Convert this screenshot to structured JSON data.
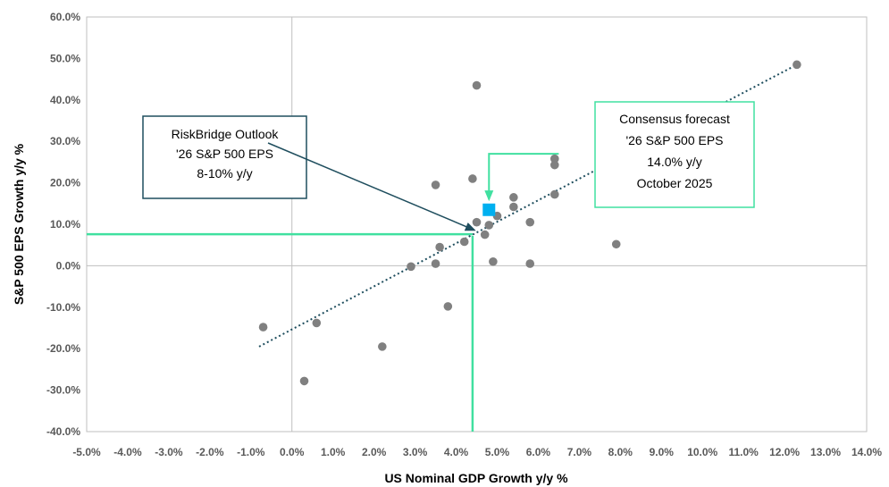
{
  "chart_data": {
    "type": "scatter",
    "xlabel": "US Nominal GDP Growth y/y %",
    "ylabel": "S&P 500 EPS Growth y/y %",
    "xlim": [
      -5,
      14
    ],
    "ylim": [
      -40,
      60
    ],
    "x_ticks": [
      "-5.0%",
      "-4.0%",
      "-3.0%",
      "-2.0%",
      "-1.0%",
      "0.0%",
      "1.0%",
      "2.0%",
      "3.0%",
      "4.0%",
      "5.0%",
      "6.0%",
      "7.0%",
      "8.0%",
      "9.0%",
      "10.0%",
      "11.0%",
      "12.0%",
      "13.0%",
      "14.0%"
    ],
    "y_ticks": [
      "-40.0%",
      "-30.0%",
      "-20.0%",
      "-10.0%",
      "0.0%",
      "10.0%",
      "20.0%",
      "30.0%",
      "40.0%",
      "50.0%",
      "60.0%"
    ],
    "grid": false,
    "series": [
      {
        "type": "scatter",
        "color": "#808080",
        "points": [
          [
            -0.7,
            -14.8
          ],
          [
            0.3,
            -27.8
          ],
          [
            0.6,
            -13.8
          ],
          [
            2.2,
            -19.5
          ],
          [
            2.9,
            -0.2
          ],
          [
            3.5,
            0.5
          ],
          [
            3.5,
            19.5
          ],
          [
            3.6,
            4.5
          ],
          [
            3.8,
            -9.8
          ],
          [
            4.2,
            5.8
          ],
          [
            4.4,
            21.0
          ],
          [
            4.5,
            43.5
          ],
          [
            4.5,
            10.5
          ],
          [
            4.7,
            7.5
          ],
          [
            4.8,
            9.8
          ],
          [
            4.9,
            1.0
          ],
          [
            5.0,
            12.0
          ],
          [
            5.4,
            16.5
          ],
          [
            5.4,
            14.2
          ],
          [
            5.8,
            10.5
          ],
          [
            5.8,
            0.5
          ],
          [
            6.4,
            25.8
          ],
          [
            6.4,
            24.3
          ],
          [
            6.4,
            17.2
          ],
          [
            7.9,
            5.2
          ],
          [
            12.3,
            48.5
          ]
        ]
      },
      {
        "type": "trendline",
        "color": "#1f4e5e",
        "style": "dotted",
        "x": [
          -0.8,
          12.3
        ],
        "y": [
          -19.5,
          48.5
        ]
      },
      {
        "type": "highlight",
        "color": "#00b0f0",
        "marker": "square",
        "points": [
          [
            4.8,
            13.5
          ]
        ]
      }
    ],
    "reference_lines": {
      "color": "#40e0a0",
      "gdp_vertical": {
        "x": 4.4,
        "y_from": -40,
        "y_to": 7.2
      },
      "eps_horizontal": {
        "y": 7.6,
        "x_from": -5,
        "x_to": 4.4
      },
      "consensus_bracket": {
        "x_from": 4.8,
        "x_to": 6.5,
        "y": 27,
        "y_arrow_end": 16
      }
    },
    "annotations": [
      {
        "id": "riskbridge",
        "lines": [
          "RiskBridge Outlook",
          "'26 S&P 500 EPS",
          "8-10% y/y"
        ],
        "border_color": "#1f4e5e",
        "arrow_to": [
          4.4,
          8.6
        ]
      },
      {
        "id": "consensus",
        "lines": [
          "Consensus forecast",
          "'26 S&P 500 EPS",
          "14.0% y/y",
          "October 2025"
        ],
        "border_color": "#40e0a0"
      }
    ]
  }
}
